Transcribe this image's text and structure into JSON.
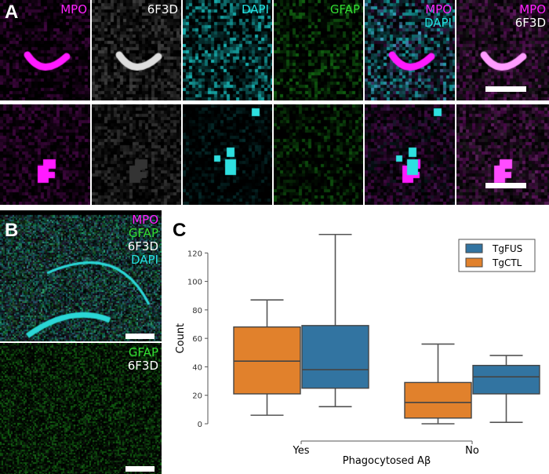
{
  "panel_a": {
    "letter": "A",
    "row1_labels": [
      [
        "MPO"
      ],
      [
        "6F3D"
      ],
      [
        "DAPI"
      ],
      [
        "GFAP"
      ],
      [
        "MPO",
        "DAPI"
      ],
      [
        "MPO",
        "6F3D"
      ]
    ],
    "label_colors": {
      "MPO": "#ff22ff",
      "6F3D": "#ffffff",
      "DAPI": "#22e0e0",
      "GFAP": "#33dd33"
    }
  },
  "panel_b": {
    "letter": "B",
    "top_labels": [
      "MPO",
      "GFAP",
      "6F3D",
      "DAPI"
    ],
    "bottom_labels": [
      "GFAP",
      "6F3D"
    ]
  },
  "panel_c": {
    "letter": "C"
  },
  "chart_data": {
    "type": "box",
    "xlabel": "Phagocytosed Aβ",
    "ylabel": "Count",
    "categories": [
      "Yes",
      "No"
    ],
    "ylim": [
      0,
      133
    ],
    "yticks": [
      0,
      20,
      40,
      60,
      80,
      100,
      120
    ],
    "legend_position": "top-right",
    "grid": false,
    "series": [
      {
        "name": "TgCTL",
        "color": "#e1812c",
        "boxes": [
          {
            "whisker_low": 6,
            "q1": 21,
            "median": 44,
            "q3": 68,
            "whisker_high": 87
          },
          {
            "whisker_low": 0,
            "q1": 4,
            "median": 15,
            "q3": 29,
            "whisker_high": 56
          }
        ]
      },
      {
        "name": "TgFUS",
        "color": "#3274a1",
        "boxes": [
          {
            "whisker_low": 12,
            "q1": 25,
            "median": 38,
            "q3": 69,
            "whisker_high": 133
          },
          {
            "whisker_low": 1,
            "q1": 21,
            "median": 33,
            "q3": 41,
            "whisker_high": 48
          }
        ]
      }
    ],
    "legend_order": [
      "TgFUS",
      "TgCTL"
    ]
  }
}
